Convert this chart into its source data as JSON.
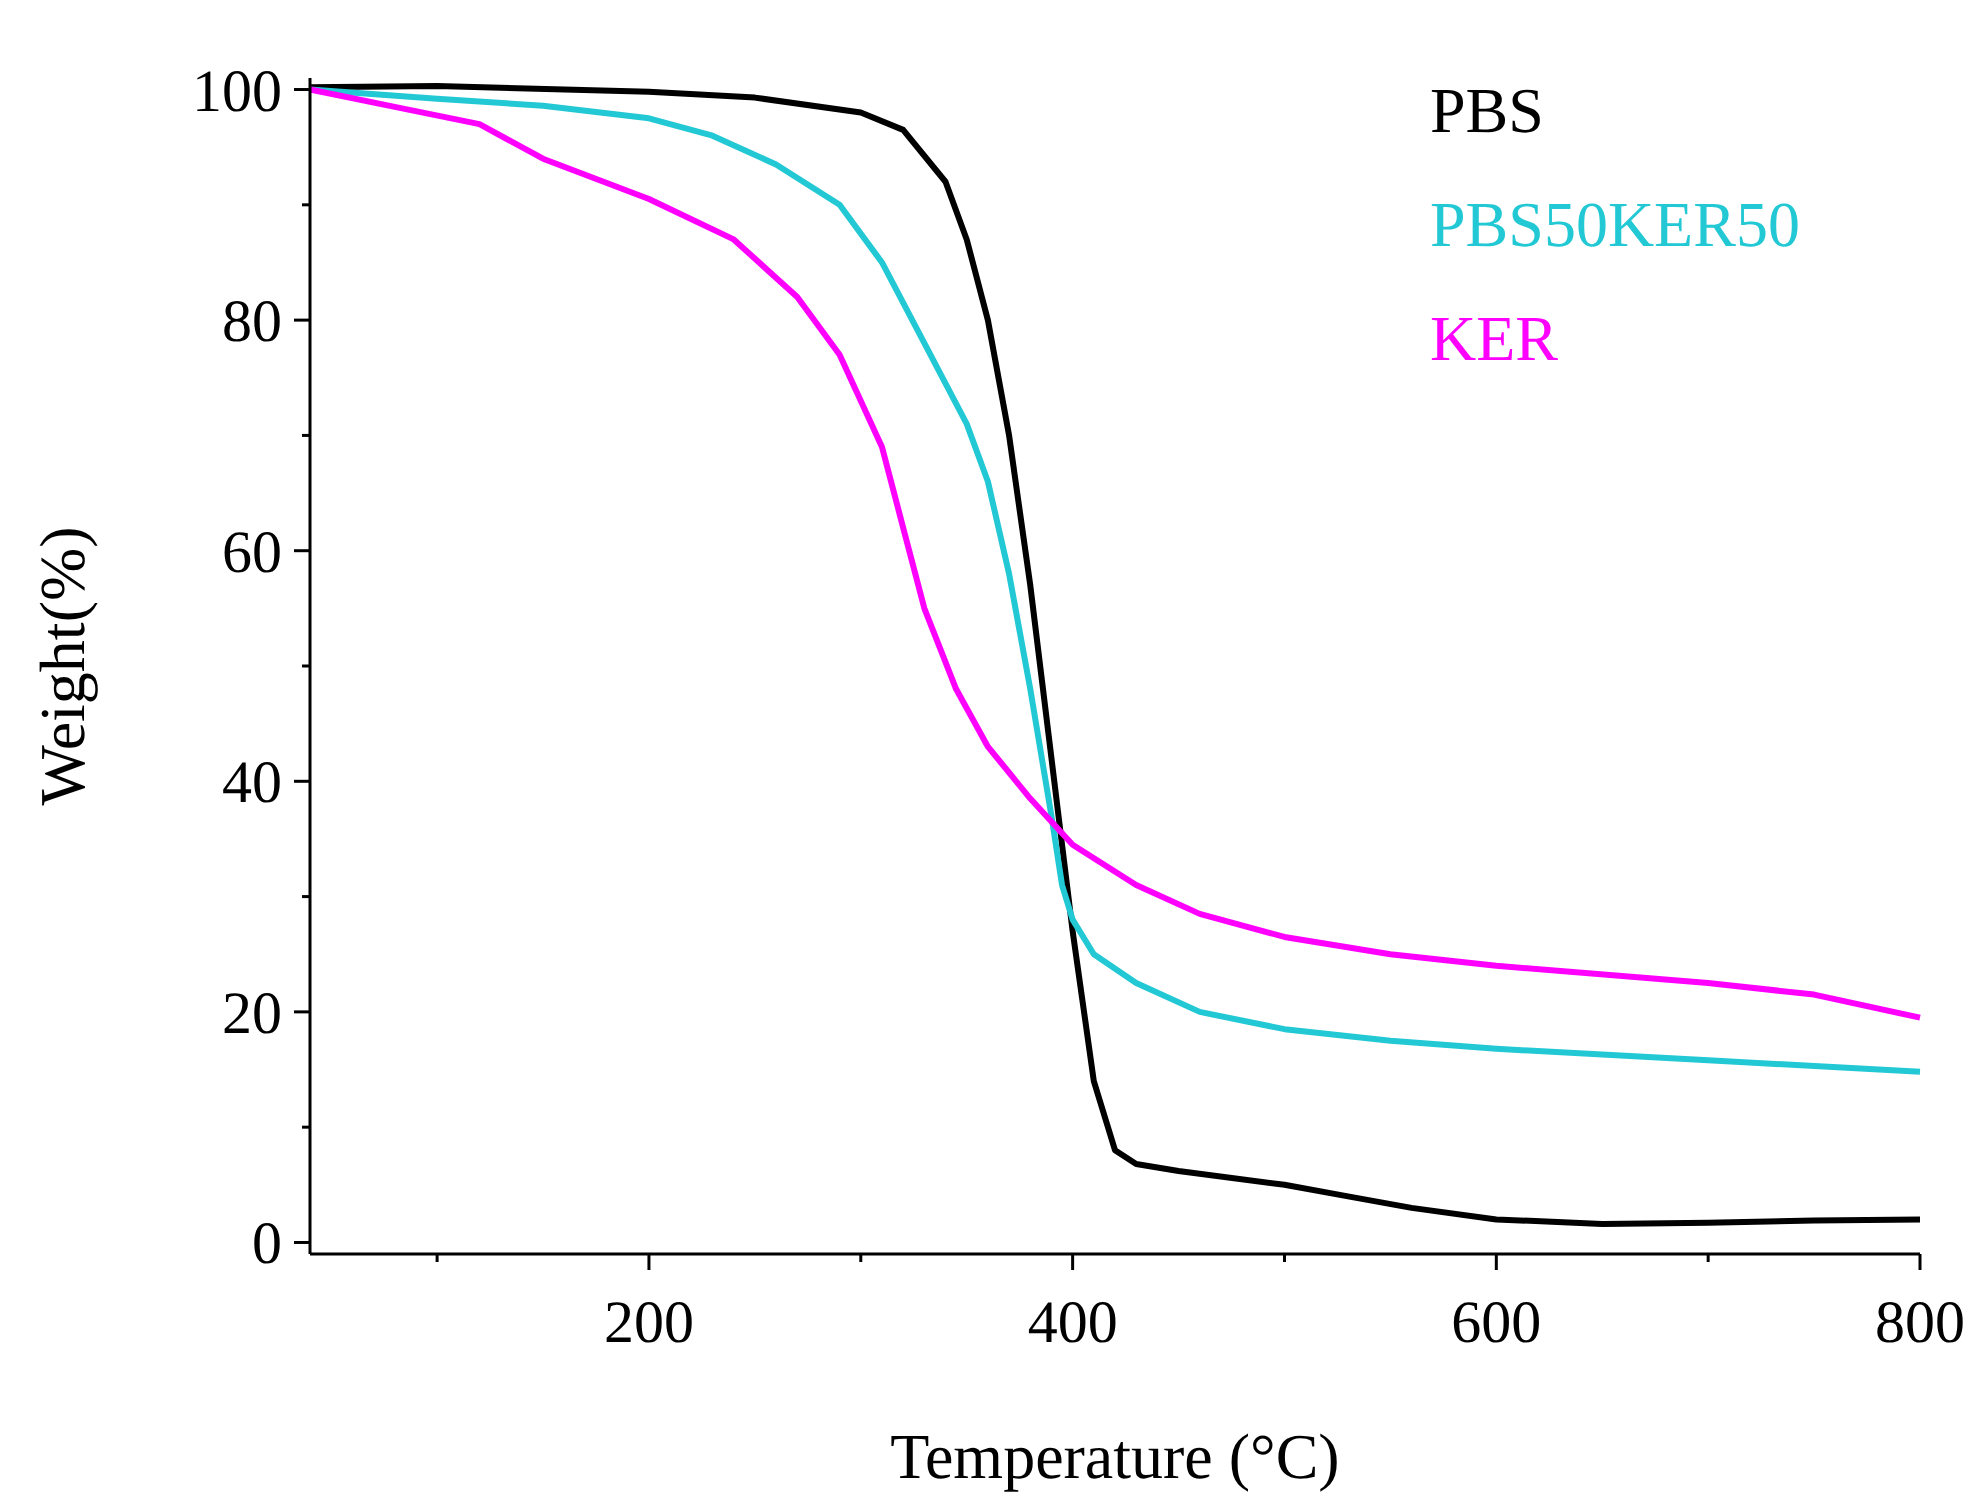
{
  "chart_data": {
    "type": "line",
    "xlabel": "Temperature (°C)",
    "ylabel": "Weight(%)",
    "xlim": [
      40,
      800
    ],
    "xticks": [
      {
        "value": 100,
        "label": null
      },
      200,
      {
        "value": 300,
        "label": null
      },
      400,
      {
        "value": 500,
        "label": null
      },
      600,
      {
        "value": 700,
        "label": null
      },
      800
    ],
    "ylim": [
      -1,
      101
    ],
    "yticks": [
      0,
      {
        "value": 10,
        "label": null
      },
      20,
      {
        "value": 30,
        "label": null
      },
      40,
      {
        "value": 50,
        "label": null
      },
      60,
      {
        "value": 70,
        "label": null
      },
      80,
      {
        "value": 90,
        "label": null
      },
      100
    ],
    "grid": false,
    "legend": "top right",
    "marker": "none",
    "line_style": "solid",
    "series": [
      {
        "name": "PBS",
        "color": "#000000",
        "x": [
          40,
          100,
          200,
          250,
          300,
          320,
          340,
          350,
          360,
          370,
          380,
          390,
          400,
          410,
          420,
          430,
          450,
          500,
          530,
          560,
          600,
          650,
          700,
          750,
          800
        ],
        "values": [
          100.2,
          100.3,
          99.8,
          99.3,
          98,
          96.5,
          92,
          87,
          80,
          70,
          57,
          42,
          27,
          14,
          8,
          6.8,
          6.2,
          5,
          4,
          3,
          2,
          1.6,
          1.7,
          1.9,
          2
        ]
      },
      {
        "name": "PBS50KER50",
        "color": "#22c8d4",
        "x": [
          40,
          100,
          150,
          200,
          230,
          260,
          290,
          310,
          330,
          350,
          360,
          370,
          380,
          390,
          395,
          400,
          410,
          430,
          460,
          500,
          550,
          600,
          700,
          800
        ],
        "values": [
          100,
          99.2,
          98.6,
          97.5,
          96,
          93.5,
          90,
          85,
          78,
          71,
          66,
          58,
          48,
          37,
          31,
          28,
          25,
          22.5,
          20,
          18.5,
          17.5,
          16.8,
          15.8,
          14.8
        ]
      },
      {
        "name": "KER",
        "color": "#ff00ff",
        "x": [
          40,
          80,
          120,
          150,
          200,
          240,
          270,
          290,
          310,
          320,
          330,
          345,
          360,
          380,
          400,
          430,
          460,
          500,
          550,
          600,
          700,
          750,
          800
        ],
        "values": [
          100,
          98.5,
          97,
          94,
          90.5,
          87,
          82,
          77,
          69,
          62,
          55,
          48,
          43,
          38.5,
          34.5,
          31,
          28.5,
          26.5,
          25,
          24,
          22.5,
          21.5,
          19.5
        ]
      }
    ]
  }
}
